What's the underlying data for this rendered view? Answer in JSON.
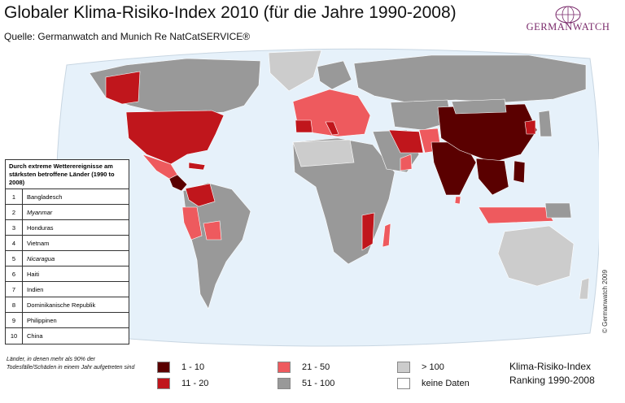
{
  "title": "Globaler Klima-Risiko-Index 2010 (für die Jahre 1990-2008)",
  "source": "Quelle: Germanwatch and Munich Re NatCatSERVICE®",
  "logo": {
    "text": "GERMANWATCH",
    "icon": "globe-logo-icon"
  },
  "copyright": "© Germanwatch 2009",
  "ranking_table": {
    "heading": "Durch extreme Wetterereignisse am stärksten betroffene Länder (1990 to 2008)",
    "rows": [
      {
        "rank": "1",
        "country": "Bangladesch"
      },
      {
        "rank": "2",
        "country": "Myanmar"
      },
      {
        "rank": "3",
        "country": "Honduras"
      },
      {
        "rank": "4",
        "country": "Vietnam"
      },
      {
        "rank": "5",
        "country": "Nicaragua"
      },
      {
        "rank": "6",
        "country": "Haiti"
      },
      {
        "rank": "7",
        "country": "Indien"
      },
      {
        "rank": "8",
        "country": "Dominikanische Republik"
      },
      {
        "rank": "9",
        "country": "Philippinen"
      },
      {
        "rank": "10",
        "country": "China"
      }
    ]
  },
  "note": "Länder, in denen mehr als 90% der Todesfälle/Schäden in einem Jahr aufgetreten sind",
  "legend": {
    "title_line1": "Klima-Risiko-Index",
    "title_line2": "Ranking 1990-2008",
    "items": [
      {
        "label": "1 - 10",
        "color": "#5a0000"
      },
      {
        "label": "11 - 20",
        "color": "#c0161c"
      },
      {
        "label": "21 - 50",
        "color": "#ee5a5e"
      },
      {
        "label": "51 - 100",
        "color": "#999999"
      },
      {
        "label": "> 100",
        "color": "#cccccc"
      },
      {
        "label": "keine Daten",
        "color": "#ffffff"
      }
    ]
  },
  "colors": {
    "ocean": "#e6f1fa",
    "rank_1_10": "#5a0000",
    "rank_11_20": "#c0161c",
    "rank_21_50": "#ee5a5e",
    "rank_51_100": "#999999",
    "rank_over_100": "#cccccc"
  }
}
